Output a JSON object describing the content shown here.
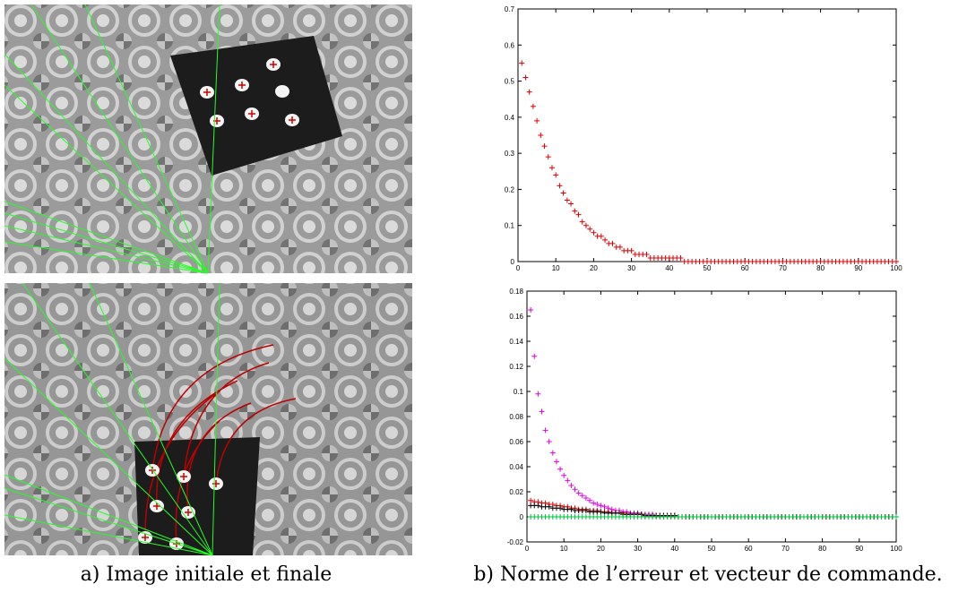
{
  "captions": [
    "a) Image initiale et finale",
    "b) Norme de l’erreur et vecteur de commande."
  ],
  "chart_data": [
    {
      "type": "scatter",
      "x": [
        1,
        2,
        3,
        4,
        5,
        6,
        7,
        8,
        9,
        10,
        11,
        12,
        13,
        14,
        15,
        16,
        17,
        18,
        19,
        20,
        21,
        22,
        23,
        24,
        25,
        26,
        27,
        28,
        29,
        30,
        31,
        32,
        33,
        34,
        35,
        36,
        37,
        38,
        39,
        40,
        41,
        42,
        43,
        44,
        45,
        46,
        47,
        48,
        49,
        50,
        51,
        52,
        53,
        54,
        55,
        56,
        57,
        58,
        59,
        60,
        61,
        62,
        63,
        64,
        65,
        66,
        67,
        68,
        69,
        70,
        71,
        72,
        73,
        74,
        75,
        76,
        77,
        78,
        79,
        80,
        81,
        82,
        83,
        84,
        85,
        86,
        87,
        88,
        89,
        90,
        91,
        92,
        93,
        94,
        95,
        96,
        97,
        98,
        99,
        100
      ],
      "series": [
        {
          "color": "#e00000",
          "values": [
            0.55,
            0.51,
            0.47,
            0.43,
            0.39,
            0.35,
            0.32,
            0.29,
            0.26,
            0.24,
            0.21,
            0.19,
            0.17,
            0.16,
            0.14,
            0.13,
            0.11,
            0.1,
            0.09,
            0.08,
            0.07,
            0.07,
            0.06,
            0.05,
            0.05,
            0.04,
            0.04,
            0.03,
            0.03,
            0.03,
            0.02,
            0.02,
            0.02,
            0.02,
            0.01,
            0.01,
            0.01,
            0.01,
            0.01,
            0.01,
            0.01,
            0.01,
            0.01,
            0,
            0,
            0,
            0,
            0,
            0,
            0,
            0,
            0,
            0,
            0,
            0,
            0,
            0,
            0,
            0,
            0,
            0,
            0,
            0,
            0,
            0,
            0,
            0,
            0,
            0,
            0,
            0,
            0,
            0,
            0,
            0,
            0,
            0,
            0,
            0,
            0,
            0,
            0,
            0,
            0,
            0,
            0,
            0,
            0,
            0,
            0,
            0,
            0,
            0,
            0,
            0,
            0,
            0,
            0,
            0,
            0
          ]
        }
      ],
      "xlim": [
        0,
        100
      ],
      "xticks": [
        0,
        10,
        20,
        30,
        40,
        50,
        60,
        70,
        80,
        90,
        100
      ],
      "ylim": [
        0,
        0.7
      ],
      "yticks": [
        0,
        0.1,
        0.2,
        0.3,
        0.4,
        0.5,
        0.6,
        0.7
      ]
    },
    {
      "type": "scatter",
      "x": [
        1,
        2,
        3,
        4,
        5,
        6,
        7,
        8,
        9,
        10,
        11,
        12,
        13,
        14,
        15,
        16,
        17,
        18,
        19,
        20,
        21,
        22,
        23,
        24,
        25,
        26,
        27,
        28,
        29,
        30,
        31,
        32,
        33,
        34,
        35,
        36,
        37,
        38,
        39,
        40,
        41,
        42,
        43,
        44,
        45,
        46,
        47,
        48,
        49,
        50,
        51,
        52,
        53,
        54,
        55,
        56,
        57,
        58,
        59,
        60,
        61,
        62,
        63,
        64,
        65,
        66,
        67,
        68,
        69,
        70,
        71,
        72,
        73,
        74,
        75,
        76,
        77,
        78,
        79,
        80,
        81,
        82,
        83,
        84,
        85,
        86,
        87,
        88,
        89,
        90,
        91,
        92,
        93,
        94,
        95,
        96,
        97,
        98,
        99,
        100
      ],
      "series": [
        {
          "color": "#e000e0",
          "values": [
            0.165,
            0.128,
            0.098,
            0.084,
            0.069,
            0.06,
            0.051,
            0.044,
            0.038,
            0.033,
            0.029,
            0.025,
            0.022,
            0.019,
            0.017,
            0.015,
            0.013,
            0.011,
            0.01,
            0.009,
            0.008,
            0.007,
            0.006,
            0.005,
            0.005,
            0.004,
            0.004,
            0.003,
            0.003,
            0.003,
            0.002,
            0.002,
            0.002,
            0.002,
            0.001,
            0.001,
            0.001,
            0.001,
            0.001,
            0.001,
            0,
            0,
            0,
            0,
            0,
            0,
            0,
            0,
            0,
            0,
            0,
            0,
            0,
            0,
            0,
            0,
            0,
            0,
            0,
            0,
            0,
            0,
            0,
            0,
            0,
            0,
            0,
            0,
            0,
            0,
            0,
            0,
            0,
            0,
            0,
            0,
            0,
            0,
            0,
            0,
            0,
            0,
            0,
            0,
            0,
            0,
            0,
            0,
            0,
            0,
            0,
            0,
            0,
            0,
            0,
            0,
            0,
            0,
            0,
            0
          ]
        },
        {
          "color": "#e00000",
          "values": [
            0.013,
            0.012,
            0.012,
            0.011,
            0.011,
            0.01,
            0.01,
            0.009,
            0.009,
            0.008,
            0.008,
            0.007,
            0.007,
            0.006,
            0.006,
            0.006,
            0.005,
            0.005,
            0.005,
            0.004,
            0.004,
            0.004,
            0.003,
            0.003,
            0.003,
            0.003,
            0.002,
            0.002,
            0.002,
            0.002,
            0.002,
            0.001,
            0.001,
            0.001,
            0.001,
            0.001,
            0.001,
            0.001,
            0.001,
            0.001,
            0,
            0,
            0,
            0,
            0,
            0,
            0,
            0,
            0,
            0,
            0,
            0,
            0,
            0,
            0,
            0,
            0,
            0,
            0,
            0,
            0,
            0,
            0,
            0,
            0,
            0,
            0,
            0,
            0,
            0,
            0,
            0,
            0,
            0,
            0,
            0,
            0,
            0,
            0,
            0,
            0,
            0,
            0,
            0,
            0,
            0,
            0,
            0,
            0,
            0,
            0,
            0,
            0,
            0,
            0,
            0,
            0,
            0,
            0,
            0
          ]
        },
        {
          "color": "#000000",
          "values": [
            0.009,
            0.009,
            0.009,
            0.008,
            0.008,
            0.008,
            0.007,
            0.007,
            0.007,
            0.006,
            0.006,
            0.006,
            0.005,
            0.005,
            0.005,
            0.005,
            0.004,
            0.004,
            0.004,
            0.004,
            0.003,
            0.003,
            0.003,
            0.003,
            0.003,
            0.002,
            0.002,
            0.002,
            0.002,
            0.002,
            0.002,
            0.001,
            0.001,
            0.001,
            0.001,
            0.001,
            0.001,
            0.001,
            0.001,
            0.001,
            0,
            0,
            0,
            0,
            0,
            0,
            0,
            0,
            0,
            0,
            0,
            0,
            0,
            0,
            0,
            0,
            0,
            0,
            0,
            0,
            0,
            0,
            0,
            0,
            0,
            0,
            0,
            0,
            0,
            0,
            0,
            0,
            0,
            0,
            0,
            0,
            0,
            0,
            0,
            0,
            0,
            0,
            0,
            0,
            0,
            0,
            0,
            0,
            0,
            0,
            0,
            0,
            0,
            0,
            0,
            0,
            0,
            0,
            0,
            0
          ]
        },
        {
          "color": "#00c040",
          "values": [
            0,
            0,
            0,
            0,
            0,
            0,
            0,
            0,
            0,
            0,
            0,
            0,
            0,
            0,
            0,
            0,
            0,
            0,
            0,
            0,
            0,
            0,
            0,
            0,
            0,
            0,
            0,
            0,
            0,
            0,
            0,
            0,
            0,
            0,
            0,
            0,
            0,
            0,
            0,
            0,
            0,
            0,
            0,
            0,
            0,
            0,
            0,
            0,
            0,
            0,
            0,
            0,
            0,
            0,
            0,
            0,
            0,
            0,
            0,
            0,
            0,
            0,
            0,
            0,
            0,
            0,
            0,
            0,
            0,
            0,
            0,
            0,
            0,
            0,
            0,
            0,
            0,
            0,
            0,
            0,
            0,
            0,
            0,
            0,
            0,
            0,
            0,
            0,
            0,
            0,
            0,
            0,
            0,
            0,
            0,
            0,
            0,
            0,
            0,
            0
          ]
        }
      ],
      "xlim": [
        0,
        100
      ],
      "xticks": [
        0,
        10,
        20,
        30,
        40,
        50,
        60,
        70,
        80,
        90,
        100
      ],
      "ylim": [
        -0.02,
        0.18
      ],
      "yticks": [
        -0.02,
        0,
        0.02,
        0.04,
        0.06,
        0.08,
        0.1,
        0.12,
        0.14,
        0.16,
        0.18
      ]
    }
  ]
}
